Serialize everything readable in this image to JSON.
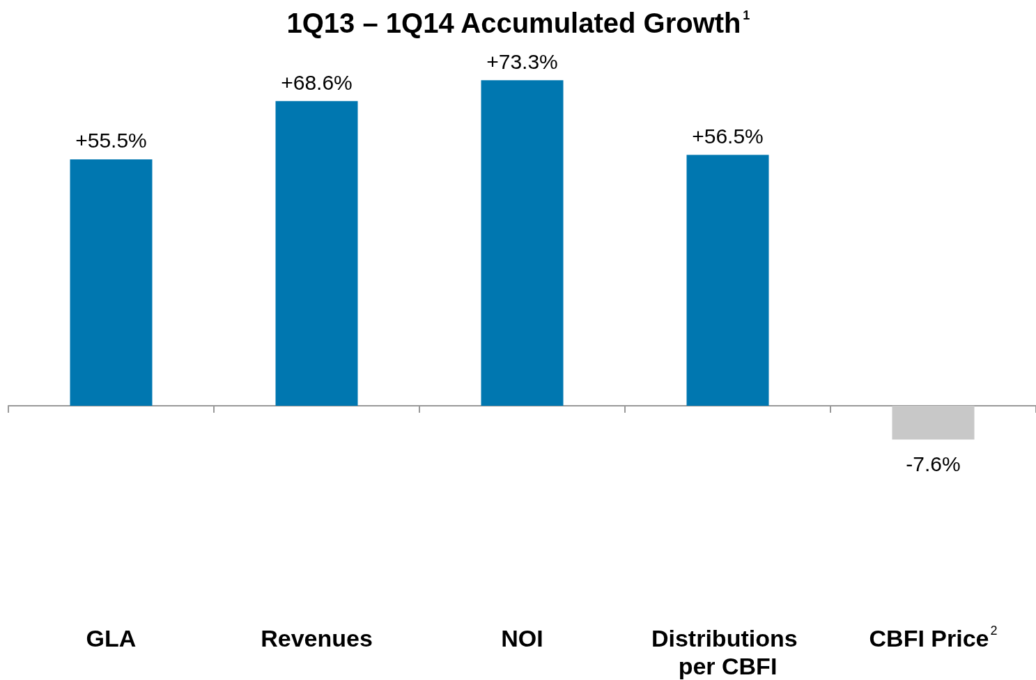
{
  "chart_data": {
    "type": "bar",
    "title": "1Q13 – 1Q14 Accumulated Growth$^{1}$",
    "categories": [
      "GLA",
      "Revenues",
      "NOI",
      "Distributions per CBFI",
      "CBFI Price$^{2}$"
    ],
    "values": [
      55.5,
      68.6,
      73.3,
      56.5,
      -7.6
    ],
    "colors": [
      "#0077b0",
      "#0077b0",
      "#0077b0",
      "#0077b0",
      "#c8c8c8"
    ],
    "value_labels": [
      "+55.5%",
      "+68.6%",
      "+73.3%",
      "+56.5%",
      "-7.6%"
    ],
    "grid": false
  }
}
